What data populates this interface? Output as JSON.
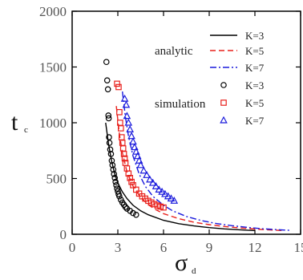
{
  "chart_data": {
    "type": "line",
    "xlabel": "σ",
    "xlabel_sub": "d",
    "ylabel": "t",
    "ylabel_sub": "c",
    "xlim": [
      0,
      15
    ],
    "ylim": [
      0,
      2000
    ],
    "xticks": [
      0,
      3,
      6,
      9,
      12,
      15
    ],
    "yticks": [
      0,
      500,
      1000,
      1500,
      2000
    ],
    "grid": false,
    "legend_position": "top-right",
    "legend_groups": [
      {
        "label": "analytic",
        "entries": [
          "K=3",
          "K=5",
          "K=7"
        ]
      },
      {
        "label": "simulation",
        "entries": [
          "K=3",
          "K=5",
          "K=7"
        ]
      }
    ],
    "series": [
      {
        "name": "K=3",
        "group": "analytic",
        "style": "solid",
        "color": "#000000",
        "x": [
          2.2,
          2.4,
          2.6,
          2.8,
          3.0,
          3.3,
          3.6,
          4.0,
          4.5,
          5.0,
          6.0,
          7.0,
          8.0,
          9.0,
          10.0,
          11.0,
          12.0
        ],
        "y": [
          1000,
          800,
          650,
          540,
          460,
          380,
          320,
          260,
          210,
          175,
          125,
          95,
          75,
          60,
          48,
          40,
          33
        ]
      },
      {
        "name": "K=5",
        "group": "analytic",
        "style": "dashed",
        "color": "#e8201c",
        "x": [
          2.9,
          3.1,
          3.3,
          3.6,
          4.0,
          4.5,
          5.0,
          5.5,
          6.0,
          7.0,
          8.0,
          9.0,
          10.0,
          11.0,
          12.0,
          13.0,
          13.8
        ],
        "y": [
          1150,
          900,
          730,
          560,
          430,
          330,
          265,
          220,
          185,
          140,
          108,
          86,
          70,
          57,
          47,
          39,
          34
        ]
      },
      {
        "name": "K=7",
        "group": "analytic",
        "style": "dashdot",
        "color": "#1a1adc",
        "x": [
          3.3,
          3.5,
          3.7,
          4.0,
          4.4,
          4.8,
          5.3,
          6.0,
          6.6,
          7.5,
          8.5,
          9.5,
          10.5,
          11.5,
          12.5,
          13.5,
          14.3
        ],
        "y": [
          1280,
          1050,
          880,
          700,
          540,
          430,
          340,
          260,
          210,
          160,
          122,
          96,
          77,
          62,
          50,
          41,
          35
        ]
      },
      {
        "name": "K=3",
        "group": "simulation",
        "marker": "circle",
        "color": "#000000",
        "x": [
          2.25,
          2.3,
          2.35,
          2.38,
          2.4,
          2.42,
          2.45,
          2.5,
          2.55,
          2.6,
          2.65,
          2.7,
          2.75,
          2.8,
          2.85,
          2.9,
          2.95,
          3.0,
          3.05,
          3.1,
          3.2,
          3.3,
          3.4,
          3.5,
          3.6,
          3.8,
          4.0,
          4.2
        ],
        "y": [
          1545,
          1380,
          1300,
          1065,
          1040,
          870,
          820,
          760,
          720,
          660,
          620,
          580,
          540,
          505,
          470,
          440,
          410,
          385,
          360,
          340,
          310,
          285,
          265,
          245,
          230,
          210,
          190,
          175
        ]
      },
      {
        "name": "K=5",
        "group": "simulation",
        "marker": "square",
        "color": "#e8201c",
        "x": [
          2.95,
          3.05,
          3.1,
          3.15,
          3.2,
          3.25,
          3.3,
          3.35,
          3.4,
          3.45,
          3.5,
          3.6,
          3.7,
          3.8,
          3.9,
          4.0,
          4.2,
          4.4,
          4.6,
          4.8,
          5.0,
          5.2,
          5.4,
          5.6,
          5.8,
          6.0
        ],
        "y": [
          1350,
          1320,
          1095,
          1000,
          950,
          870,
          820,
          770,
          720,
          680,
          640,
          590,
          545,
          505,
          470,
          440,
          400,
          365,
          340,
          320,
          300,
          285,
          270,
          258,
          248,
          240
        ]
      },
      {
        "name": "K=7",
        "group": "simulation",
        "marker": "triangle",
        "color": "#1a1adc",
        "x": [
          3.45,
          3.55,
          3.6,
          3.7,
          3.8,
          3.9,
          4.0,
          4.1,
          4.2,
          4.3,
          4.4,
          4.5,
          4.7,
          4.9,
          5.1,
          5.3,
          5.5,
          5.7,
          5.9,
          6.1,
          6.3,
          6.5,
          6.7
        ],
        "y": [
          1215,
          1160,
          1060,
          1000,
          940,
          880,
          830,
          780,
          740,
          700,
          660,
          620,
          570,
          530,
          490,
          460,
          430,
          400,
          380,
          360,
          340,
          320,
          300
        ]
      }
    ]
  }
}
